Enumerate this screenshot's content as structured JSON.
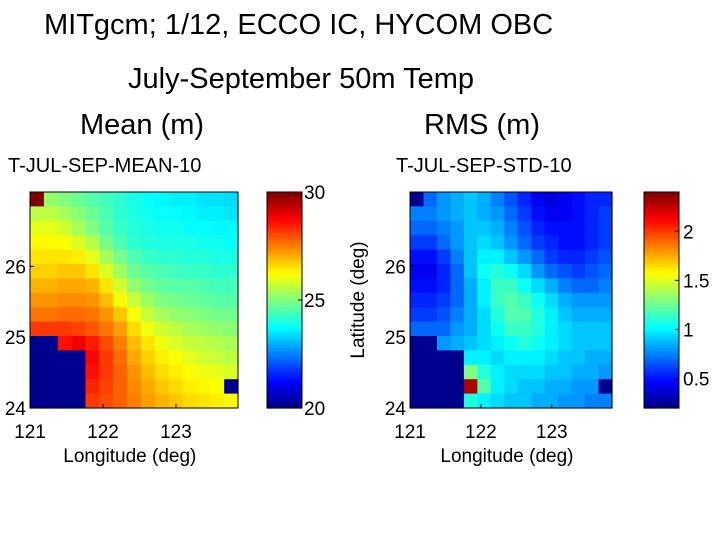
{
  "title_line1": "MITgcm; 1/12, ECCO IC, HYCOM OBC",
  "title_line2": "July-September 50m Temp",
  "panel_labels": {
    "left": "Mean  (m)",
    "right": "RMS  (m)"
  },
  "chart_data": [
    {
      "type": "heatmap",
      "title": "T-JUL-SEP-MEAN-10",
      "xlabel": "Longitude (deg)",
      "ylabel": "",
      "xlim": [
        121,
        123.85
      ],
      "ylim": [
        24,
        27.05
      ],
      "xticks": [
        121,
        122,
        123
      ],
      "yticks": [
        24,
        25,
        26
      ],
      "colorbar": {
        "min": 20,
        "max": 30,
        "ticks": [
          20,
          25,
          30
        ]
      },
      "field": "mean temperature; land (island) masked at lower-left",
      "cell_values": [
        [
          30,
          25.2,
          25.0,
          24.8,
          24.6,
          24.4,
          24.2,
          24.0,
          23.8,
          23.7,
          23.6,
          23.6,
          23.5,
          23.5,
          23.4
        ],
        [
          25.6,
          25.6,
          25.4,
          25.1,
          24.8,
          24.5,
          24.2,
          24.0,
          23.9,
          23.8,
          23.8,
          23.7,
          23.6,
          23.6,
          23.5
        ],
        [
          26.0,
          26.0,
          25.8,
          25.4,
          25.0,
          24.6,
          24.3,
          24.1,
          24.0,
          23.9,
          23.9,
          23.8,
          23.8,
          23.7,
          23.7
        ],
        [
          26.3,
          26.3,
          26.2,
          25.9,
          25.5,
          24.9,
          24.5,
          24.2,
          24.1,
          24.0,
          24.0,
          24.0,
          23.9,
          23.9,
          23.8
        ],
        [
          26.5,
          26.5,
          26.5,
          26.4,
          26.0,
          25.4,
          24.9,
          24.5,
          24.3,
          24.2,
          24.2,
          24.1,
          24.1,
          24.0,
          24.0
        ],
        [
          26.7,
          26.7,
          26.8,
          26.8,
          26.5,
          25.9,
          25.3,
          24.8,
          24.6,
          24.5,
          24.4,
          24.3,
          24.3,
          24.2,
          24.2
        ],
        [
          27.0,
          27.0,
          27.1,
          27.1,
          27.0,
          26.5,
          25.8,
          25.2,
          24.9,
          24.7,
          24.6,
          24.6,
          24.5,
          24.4,
          24.4
        ],
        [
          27.3,
          27.3,
          27.4,
          27.4,
          27.3,
          26.9,
          26.3,
          25.7,
          25.3,
          25.0,
          24.9,
          24.8,
          24.7,
          24.6,
          24.6
        ],
        [
          27.6,
          27.6,
          27.7,
          27.7,
          27.6,
          27.3,
          26.8,
          26.2,
          25.7,
          25.4,
          25.2,
          25.1,
          25.0,
          24.9,
          24.9
        ],
        [
          28.2,
          28.2,
          28.2,
          28.1,
          27.9,
          27.6,
          27.2,
          26.6,
          26.1,
          25.8,
          25.6,
          25.4,
          25.3,
          25.2,
          25.1
        ],
        [
          null,
          null,
          28.6,
          28.9,
          28.5,
          28.0,
          27.5,
          26.9,
          26.5,
          26.1,
          25.9,
          25.7,
          25.6,
          25.5,
          25.4
        ],
        [
          null,
          null,
          null,
          null,
          28.7,
          28.2,
          27.7,
          27.1,
          26.7,
          26.4,
          26.2,
          26.0,
          25.8,
          25.7,
          25.6
        ],
        [
          null,
          null,
          null,
          null,
          28.6,
          28.2,
          27.8,
          27.3,
          26.9,
          26.6,
          26.4,
          26.2,
          26.1,
          26.0,
          25.9
        ],
        [
          null,
          null,
          null,
          null,
          28.4,
          28.1,
          27.8,
          27.4,
          27.1,
          26.8,
          26.6,
          26.4,
          26.3,
          26.2,
          null
        ],
        [
          null,
          null,
          null,
          null,
          28.2,
          28.0,
          27.8,
          27.5,
          27.2,
          27.0,
          26.8,
          26.6,
          26.5,
          26.4,
          26.3
        ]
      ]
    },
    {
      "type": "heatmap",
      "title": "T-JUL-SEP-STD-10",
      "xlabel": "Longitude (deg)",
      "ylabel": "Latitude (deg)",
      "xlim": [
        121,
        123.85
      ],
      "ylim": [
        24,
        27.05
      ],
      "xticks": [
        121,
        122,
        123
      ],
      "yticks": [
        24,
        25,
        26
      ],
      "colorbar": {
        "min": 0.2,
        "max": 2.4,
        "ticks": [
          0.5,
          1,
          1.5,
          2
        ]
      },
      "field": "RMS temperature; land (island) masked at lower-left",
      "cell_values": [
        [
          null,
          0.7,
          0.8,
          0.85,
          0.9,
          0.85,
          0.75,
          0.65,
          0.55,
          0.45,
          0.4,
          0.45,
          0.5,
          0.55,
          0.55
        ],
        [
          0.75,
          0.75,
          0.8,
          0.85,
          0.9,
          0.85,
          0.8,
          0.7,
          0.6,
          0.5,
          0.45,
          0.45,
          0.5,
          0.55,
          0.6
        ],
        [
          0.7,
          0.7,
          0.75,
          0.8,
          0.9,
          0.9,
          0.85,
          0.75,
          0.65,
          0.55,
          0.5,
          0.5,
          0.5,
          0.55,
          0.6
        ],
        [
          0.6,
          0.6,
          0.7,
          0.8,
          0.9,
          0.95,
          0.9,
          0.8,
          0.7,
          0.6,
          0.55,
          0.5,
          0.5,
          0.55,
          0.6
        ],
        [
          0.5,
          0.5,
          0.6,
          0.75,
          0.9,
          1.0,
          1.0,
          0.9,
          0.8,
          0.7,
          0.6,
          0.55,
          0.55,
          0.6,
          0.65
        ],
        [
          0.45,
          0.45,
          0.55,
          0.7,
          0.9,
          1.05,
          1.1,
          1.05,
          0.95,
          0.8,
          0.7,
          0.65,
          0.6,
          0.65,
          0.7
        ],
        [
          0.5,
          0.5,
          0.55,
          0.7,
          0.85,
          1.0,
          1.15,
          1.15,
          1.05,
          0.95,
          0.85,
          0.75,
          0.7,
          0.7,
          0.75
        ],
        [
          0.55,
          0.55,
          0.6,
          0.7,
          0.85,
          1.0,
          1.15,
          1.2,
          1.15,
          1.05,
          0.95,
          0.85,
          0.8,
          0.8,
          0.8
        ],
        [
          0.6,
          0.6,
          0.65,
          0.75,
          0.85,
          0.95,
          1.1,
          1.2,
          1.2,
          1.1,
          1.0,
          0.9,
          0.85,
          0.85,
          0.85
        ],
        [
          0.7,
          0.7,
          0.7,
          0.8,
          0.85,
          0.95,
          1.05,
          1.15,
          1.15,
          1.1,
          1.0,
          0.95,
          0.9,
          0.9,
          0.9
        ],
        [
          null,
          null,
          0.8,
          0.85,
          0.9,
          0.95,
          1.0,
          1.05,
          1.1,
          1.05,
          1.0,
          0.95,
          0.9,
          0.9,
          0.9
        ],
        [
          null,
          null,
          null,
          null,
          1.0,
          1.0,
          0.95,
          1.0,
          1.0,
          1.0,
          0.95,
          0.9,
          0.9,
          0.85,
          0.85
        ],
        [
          null,
          null,
          null,
          null,
          1.3,
          1.1,
          1.0,
          0.95,
          0.95,
          0.95,
          0.9,
          0.9,
          0.85,
          0.85,
          0.8
        ],
        [
          null,
          null,
          null,
          null,
          2.3,
          1.2,
          1.0,
          0.95,
          0.9,
          0.9,
          0.85,
          0.85,
          0.8,
          0.8,
          null
        ],
        [
          null,
          null,
          null,
          null,
          1.1,
          1.0,
          0.95,
          0.9,
          0.9,
          0.85,
          0.85,
          0.8,
          0.8,
          0.75,
          0.75
        ]
      ]
    }
  ]
}
